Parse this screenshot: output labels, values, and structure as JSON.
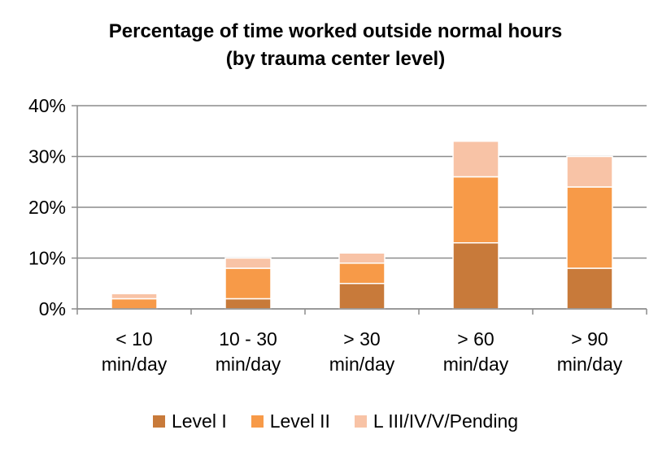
{
  "chart_data": {
    "type": "bar",
    "stacked": true,
    "title": [
      "Percentage of time worked outside normal hours",
      "(by trauma center level)"
    ],
    "categories": [
      [
        "< 10",
        "min/day"
      ],
      [
        "10 - 30",
        "min/day"
      ],
      [
        "> 30",
        "min/day"
      ],
      [
        "> 60",
        "min/day"
      ],
      [
        "> 90",
        "min/day"
      ]
    ],
    "series": [
      {
        "name": "Level I",
        "color": "#C87A3A",
        "values": [
          0,
          2,
          5,
          13,
          8
        ]
      },
      {
        "name": "Level II",
        "color": "#F79A48",
        "values": [
          2,
          6,
          4,
          13,
          16
        ]
      },
      {
        "name": "L III/IV/V/Pending",
        "color": "#F8C3A6",
        "values": [
          1,
          2,
          2,
          7,
          6
        ]
      }
    ],
    "ylim": [
      0,
      40
    ],
    "yticks": [
      "0%",
      "10%",
      "20%",
      "30%",
      "40%"
    ],
    "ytick_values": [
      0,
      10,
      20,
      30,
      40
    ],
    "grid": true,
    "legend_position": "bottom"
  }
}
